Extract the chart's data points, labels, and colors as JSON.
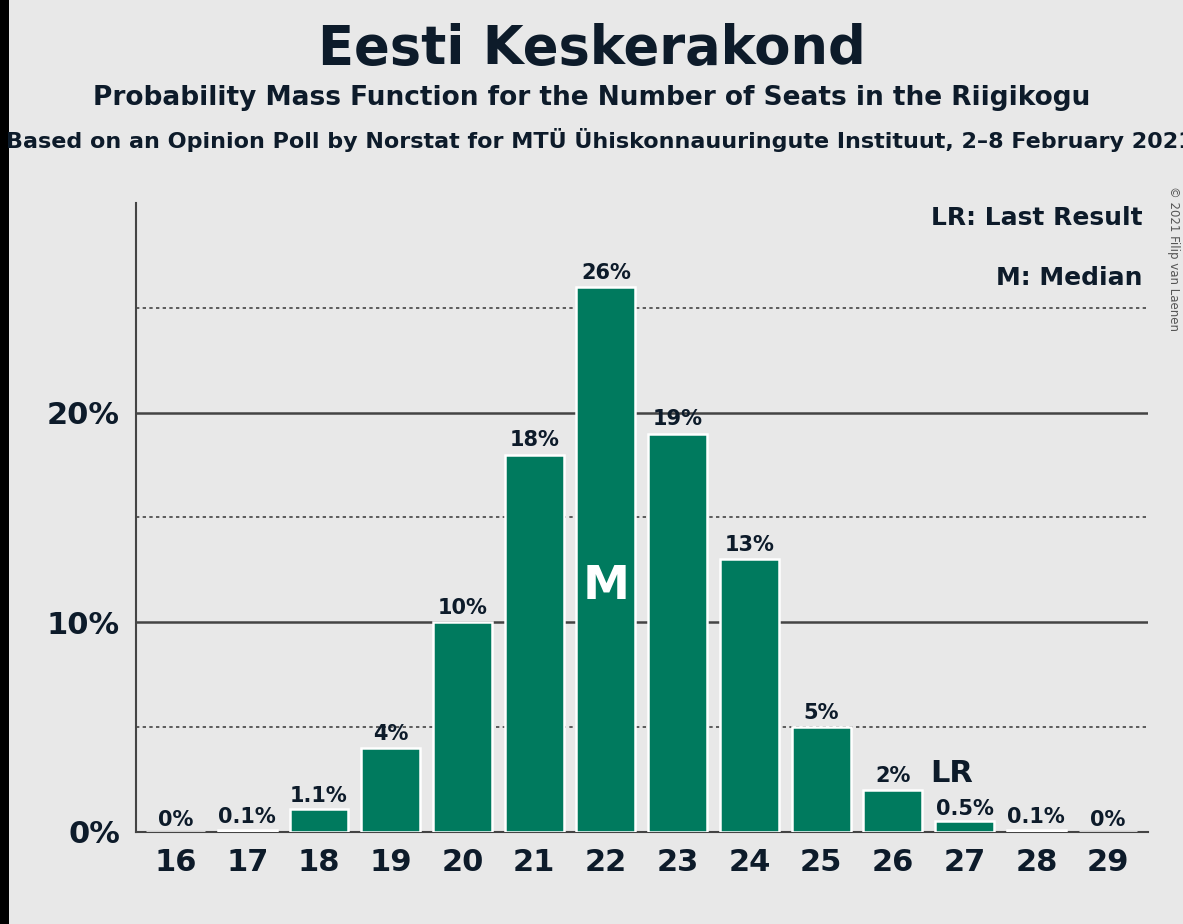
{
  "title": "Eesti Keskerakond",
  "subtitle": "Probability Mass Function for the Number of Seats in the Riigikogu",
  "source_line": "Based on an Opinion Poll by Norstat for MTÜ Ühiskonnauuringute Instituut, 2–8 February 2021",
  "copyright": "© 2021 Filip van Laenen",
  "seats": [
    16,
    17,
    18,
    19,
    20,
    21,
    22,
    23,
    24,
    25,
    26,
    27,
    28,
    29
  ],
  "probabilities": [
    0.0,
    0.001,
    0.011,
    0.04,
    0.1,
    0.18,
    0.26,
    0.19,
    0.13,
    0.05,
    0.02,
    0.005,
    0.001,
    0.0
  ],
  "prob_labels": [
    "0%",
    "0.1%",
    "1.1%",
    "4%",
    "10%",
    "18%",
    "26%",
    "19%",
    "13%",
    "5%",
    "2%",
    "0.5%",
    "0.1%",
    "0%"
  ],
  "bar_color": "#007A5E",
  "bar_edge_color": "#ffffff",
  "background_color": "#e8e8e8",
  "text_color": "#0d1b2a",
  "median_seat": 22,
  "last_result_seat": 26,
  "legend_lr": "LR: Last Result",
  "legend_m": "M: Median",
  "title_fontsize": 38,
  "subtitle_fontsize": 19,
  "source_fontsize": 16,
  "bar_label_fontsize": 15,
  "tick_fontsize": 22,
  "legend_fontsize": 18,
  "median_label_fontsize": 34,
  "lr_label_fontsize": 22,
  "ytick_positions": [
    0.0,
    0.1,
    0.2
  ],
  "ytick_labels": [
    "0%",
    "10%",
    "20%"
  ],
  "solid_gridlines": [
    0.1,
    0.2
  ],
  "dotted_gridlines": [
    0.05,
    0.15,
    0.25
  ],
  "ylim": [
    0,
    0.3
  ],
  "xlim_left": 15.45,
  "xlim_right": 29.55
}
